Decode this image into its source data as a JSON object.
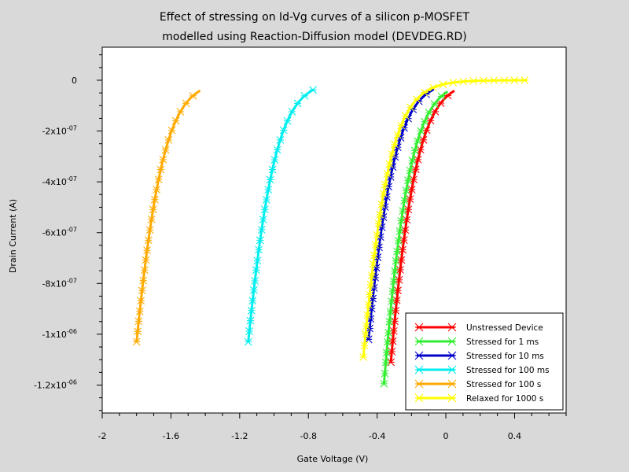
{
  "chart_data": {
    "type": "line",
    "title_line1": "Effect of stressing on Id-Vg curves of a silicon p-MOSFET",
    "title_line2": "modelled using Reaction-Diffusion model (DEVDEG.RD)",
    "xlabel": "Gate Voltage (V)",
    "ylabel": "Drain Current (A)",
    "xlim": [
      -2.0,
      0.7
    ],
    "ylim": [
      -1.31e-06,
      1.3e-07
    ],
    "x_ticks": [
      {
        "value": -2.0,
        "label": "-2"
      },
      {
        "value": -1.6,
        "label": "-1.6"
      },
      {
        "value": -1.2,
        "label": "-1.2"
      },
      {
        "value": -0.8,
        "label": "-0.8"
      },
      {
        "value": -0.4,
        "label": "-0.4"
      },
      {
        "value": 0.0,
        "label": "0"
      },
      {
        "value": 0.4,
        "label": "0.4"
      }
    ],
    "y_ticks": [
      {
        "value": 0,
        "mantissa": "0",
        "exp": ""
      },
      {
        "value": -2e-07,
        "mantissa": "-2x10",
        "exp": "-07"
      },
      {
        "value": -4e-07,
        "mantissa": "-4x10",
        "exp": "-07"
      },
      {
        "value": -6e-07,
        "mantissa": "-6x10",
        "exp": "-07"
      },
      {
        "value": -8e-07,
        "mantissa": "-8x10",
        "exp": "-07"
      },
      {
        "value": -1e-06,
        "mantissa": "-1x10",
        "exp": "-06"
      },
      {
        "value": -1.2e-06,
        "mantissa": "-1.2x10",
        "exp": "-06"
      }
    ],
    "legend_position": "bottom-right",
    "grid": false,
    "series": [
      {
        "name": "Unstressed Device",
        "color": "#ff0000",
        "vth": -0.3,
        "x_start": -0.32,
        "x_end": 0.05,
        "y_start": -1.11e-06
      },
      {
        "name": "Stressed for 1 ms",
        "color": "#33ee33",
        "vth": -0.34,
        "x_start": -0.36,
        "x_end": 0.01,
        "y_start": -1.195e-06
      },
      {
        "name": "Stressed for 10 ms",
        "color": "#0000cc",
        "vth": -0.42,
        "x_start": -0.45,
        "x_end": -0.07,
        "y_start": -1.02e-06
      },
      {
        "name": "Stressed for 100 ms",
        "color": "#00eeee",
        "vth": -1.11,
        "x_start": -1.15,
        "x_end": -0.77,
        "y_start": -1.03e-06
      },
      {
        "name": "Stressed for 100 s",
        "color": "#ffaa00",
        "vth": -1.76,
        "x_start": -1.8,
        "x_end": -1.43,
        "y_start": -1.03e-06
      },
      {
        "name": "Relaxed for 1000 s",
        "color": "#ffff00",
        "vth": -0.45,
        "x_start": -0.48,
        "x_end": 0.47,
        "y_start": -1.09e-06
      }
    ]
  }
}
